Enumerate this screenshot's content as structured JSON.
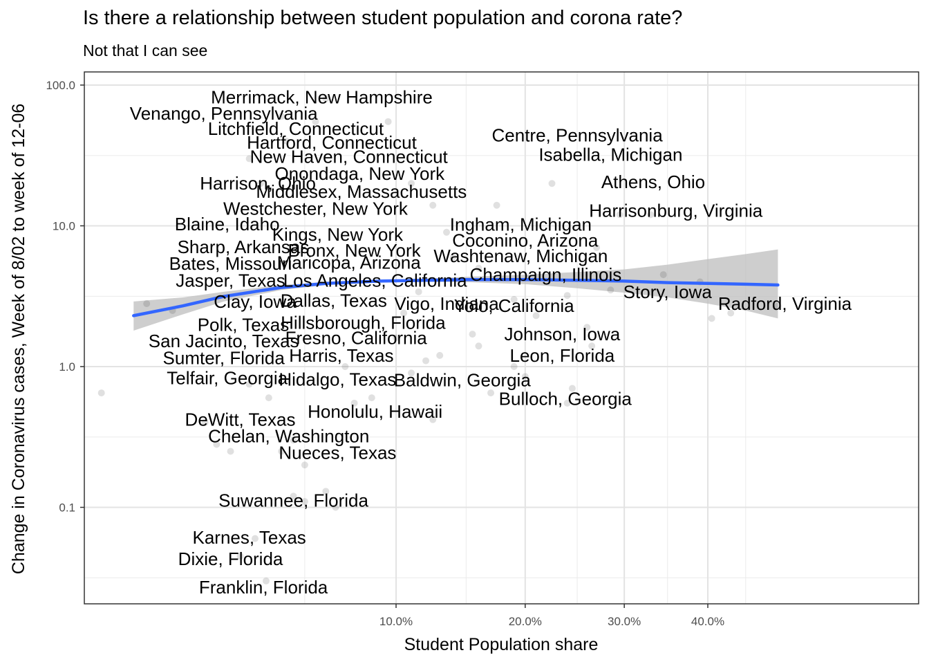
{
  "title": "Is there a relationship between student population and corona rate?",
  "subtitle": "Not that I can see",
  "chart_data": {
    "type": "scatter",
    "title": "Is there a relationship between student population and corona rate?",
    "subtitle": "Not that I can see",
    "xlabel": "Student Population share",
    "ylabel": "Change in Coronavirus cases, Week of 8/02 to week of 12-06",
    "x_scale": "sqrt",
    "y_scale": "log10",
    "xlim": [
      0.0,
      0.5
    ],
    "ylim": [
      0.02,
      150
    ],
    "x_ticks": [
      0.1,
      0.2,
      0.3,
      0.4
    ],
    "x_tick_labels": [
      "10.0%",
      "20.0%",
      "30.0%",
      "40.0%"
    ],
    "y_ticks": [
      0.1,
      1,
      10,
      100
    ],
    "y_tick_labels": [
      "0.1",
      "1.0",
      "10.0",
      "100.0"
    ],
    "grid": true,
    "point_color": "#000000",
    "point_alpha": 0.12,
    "smooth_color": "#3366ff",
    "ribbon_color": "#bdbdbd",
    "smooth": {
      "x": [
        0.0025,
        0.01,
        0.02,
        0.04,
        0.06,
        0.09,
        0.12,
        0.15,
        0.2,
        0.25,
        0.3,
        0.35,
        0.4,
        0.45,
        0.495
      ],
      "y": [
        2.3,
        2.7,
        3.15,
        3.65,
        3.9,
        4.05,
        4.1,
        4.15,
        4.15,
        4.1,
        4.05,
        3.95,
        3.9,
        3.85,
        3.8
      ],
      "lower": [
        1.8,
        2.35,
        2.9,
        3.5,
        3.8,
        3.98,
        4.0,
        3.98,
        3.85,
        3.6,
        3.35,
        3.1,
        2.8,
        2.5,
        2.2
      ],
      "upper": [
        2.9,
        3.1,
        3.4,
        3.8,
        4.0,
        4.12,
        4.2,
        4.35,
        4.5,
        4.7,
        4.9,
        5.3,
        5.8,
        6.3,
        6.8
      ]
    },
    "points": [
      {
        "x": 0.0003,
        "y": 0.65
      },
      {
        "x": 0.004,
        "y": 2.8
      },
      {
        "x": 0.008,
        "y": 2.5
      },
      {
        "x": 0.015,
        "y": 0.4
      },
      {
        "x": 0.018,
        "y": 0.28
      },
      {
        "x": 0.022,
        "y": 0.25
      },
      {
        "x": 0.03,
        "y": 0.06
      },
      {
        "x": 0.034,
        "y": 0.03
      },
      {
        "x": 0.025,
        "y": 0.045
      },
      {
        "x": 0.04,
        "y": 0.25
      },
      {
        "x": 0.045,
        "y": 0.12
      },
      {
        "x": 0.05,
        "y": 0.11
      },
      {
        "x": 0.06,
        "y": 0.13
      },
      {
        "x": 0.065,
        "y": 0.1
      },
      {
        "x": 0.05,
        "y": 0.2
      },
      {
        "x": 0.045,
        "y": 0.3
      },
      {
        "x": 0.035,
        "y": 0.6
      },
      {
        "x": 0.028,
        "y": 0.75
      },
      {
        "x": 0.032,
        "y": 20
      },
      {
        "x": 0.028,
        "y": 30
      },
      {
        "x": 0.042,
        "y": 40
      },
      {
        "x": 0.055,
        "y": 55
      },
      {
        "x": 0.06,
        "y": 80
      },
      {
        "x": 0.04,
        "y": 60
      },
      {
        "x": 0.095,
        "y": 55
      },
      {
        "x": 0.11,
        "y": 20
      },
      {
        "x": 0.125,
        "y": 14
      },
      {
        "x": 0.135,
        "y": 9
      },
      {
        "x": 0.14,
        "y": 6
      },
      {
        "x": 0.16,
        "y": 5
      },
      {
        "x": 0.175,
        "y": 14
      },
      {
        "x": 0.19,
        "y": 3
      },
      {
        "x": 0.21,
        "y": 2.3
      },
      {
        "x": 0.225,
        "y": 20
      },
      {
        "x": 0.24,
        "y": 3.2
      },
      {
        "x": 0.26,
        "y": 1.9
      },
      {
        "x": 0.27,
        "y": 7
      },
      {
        "x": 0.285,
        "y": 3.5
      },
      {
        "x": 0.295,
        "y": 12
      },
      {
        "x": 0.33,
        "y": 12
      },
      {
        "x": 0.345,
        "y": 4.5
      },
      {
        "x": 0.39,
        "y": 4
      },
      {
        "x": 0.405,
        "y": 2.2
      },
      {
        "x": 0.43,
        "y": 2.4
      },
      {
        "x": 0.495,
        "y": 2.7
      },
      {
        "x": 0.155,
        "y": 1.7
      },
      {
        "x": 0.16,
        "y": 1.4
      },
      {
        "x": 0.19,
        "y": 1.0
      },
      {
        "x": 0.2,
        "y": 0.85
      },
      {
        "x": 0.245,
        "y": 0.7
      },
      {
        "x": 0.24,
        "y": 0.55
      },
      {
        "x": 0.265,
        "y": 1.4
      },
      {
        "x": 0.17,
        "y": 0.65
      },
      {
        "x": 0.125,
        "y": 0.42
      },
      {
        "x": 0.11,
        "y": 0.9
      },
      {
        "x": 0.12,
        "y": 1.1
      },
      {
        "x": 0.13,
        "y": 1.2
      },
      {
        "x": 0.1,
        "y": 1.6
      },
      {
        "x": 0.105,
        "y": 2.4
      },
      {
        "x": 0.115,
        "y": 3.4
      },
      {
        "x": 0.085,
        "y": 0.6
      },
      {
        "x": 0.075,
        "y": 0.55
      },
      {
        "x": 0.07,
        "y": 1.0
      }
    ],
    "labels": [
      {
        "text": "Merrimack, New Hampshire",
        "x": 0.058,
        "y": 82
      },
      {
        "text": "Venango, Pennsylvania",
        "x": 0.02,
        "y": 63
      },
      {
        "text": "Litchfield, Connecticut",
        "x": 0.046,
        "y": 49
      },
      {
        "text": "Hartford, Connecticut",
        "x": 0.063,
        "y": 39
      },
      {
        "text": "New Haven, Connecticut",
        "x": 0.072,
        "y": 31
      },
      {
        "text": "Centre, Pennsylvania",
        "x": 0.25,
        "y": 44
      },
      {
        "text": "Isabella, Michigan",
        "x": 0.285,
        "y": 32
      },
      {
        "text": "Onondaga, New York",
        "x": 0.078,
        "y": 23.5
      },
      {
        "text": "Harrison, Ohio",
        "x": 0.031,
        "y": 20
      },
      {
        "text": "Middlesex, Massachusetts",
        "x": 0.079,
        "y": 17.5
      },
      {
        "text": "Athens, Ohio",
        "x": 0.333,
        "y": 20.5
      },
      {
        "text": "Westchester, New York",
        "x": 0.055,
        "y": 13.3
      },
      {
        "text": "Harrisonburg, Virginia",
        "x": 0.36,
        "y": 12.8
      },
      {
        "text": "Blaine, Idaho",
        "x": 0.021,
        "y": 10.3
      },
      {
        "text": "Ingham, Michigan",
        "x": 0.196,
        "y": 10.2
      },
      {
        "text": "Kings, New York",
        "x": 0.066,
        "y": 8.7
      },
      {
        "text": "Coconino, Arizona",
        "x": 0.2,
        "y": 7.9
      },
      {
        "text": "Sharp, Arkansas",
        "x": 0.026,
        "y": 7.1
      },
      {
        "text": "Bronx, New York",
        "x": 0.075,
        "y": 6.7
      },
      {
        "text": "Washtenaw, Michigan",
        "x": 0.196,
        "y": 6.1
      },
      {
        "text": "Bates, Missouri",
        "x": 0.022,
        "y": 5.4
      },
      {
        "text": "Maricopa, Arizona",
        "x": 0.072,
        "y": 5.5
      },
      {
        "text": "Champaign, Illinois",
        "x": 0.219,
        "y": 4.5
      },
      {
        "text": "Jasper, Texas",
        "x": 0.022,
        "y": 4.1
      },
      {
        "text": "Los Angeles, California",
        "x": 0.087,
        "y": 4.1
      },
      {
        "text": "Story, Iowa",
        "x": 0.35,
        "y": 3.4
      },
      {
        "text": "Clay, Iowa",
        "x": 0.03,
        "y": 2.9
      },
      {
        "text": "Dallas, Texas",
        "x": 0.064,
        "y": 2.95
      },
      {
        "text": "Vigo, Indiana",
        "x": 0.135,
        "y": 2.8
      },
      {
        "text": "Yolo, California",
        "x": 0.19,
        "y": 2.7
      },
      {
        "text": "Radford, Virginia",
        "x": 0.505,
        "y": 2.8
      },
      {
        "text": "Hillsborough, Florida",
        "x": 0.08,
        "y": 2.05
      },
      {
        "text": "Polk, Texas",
        "x": 0.026,
        "y": 1.98
      },
      {
        "text": "Johnson, Iowa",
        "x": 0.235,
        "y": 1.7
      },
      {
        "text": "Fresno, California",
        "x": 0.076,
        "y": 1.6
      },
      {
        "text": "San Jacinto, Texas",
        "x": 0.02,
        "y": 1.52
      },
      {
        "text": "Harris, Texas",
        "x": 0.068,
        "y": 1.2
      },
      {
        "text": "Leon, Florida",
        "x": 0.235,
        "y": 1.2
      },
      {
        "text": "Sumter, Florida",
        "x": 0.02,
        "y": 1.15
      },
      {
        "text": "Telfair, Georgia",
        "x": 0.021,
        "y": 0.83
      },
      {
        "text": "Hidalgo, Texas",
        "x": 0.066,
        "y": 0.81
      },
      {
        "text": "Baldwin, Georgia",
        "x": 0.147,
        "y": 0.8
      },
      {
        "text": "Bulloch, Georgia",
        "x": 0.238,
        "y": 0.59
      },
      {
        "text": "Honolulu, Hawaii",
        "x": 0.087,
        "y": 0.48
      },
      {
        "text": "DeWitt, Texas",
        "x": 0.025,
        "y": 0.42
      },
      {
        "text": "Chelan, Washington",
        "x": 0.043,
        "y": 0.32
      },
      {
        "text": "Nueces, Texas",
        "x": 0.066,
        "y": 0.245
      },
      {
        "text": "Suwannee, Florida",
        "x": 0.045,
        "y": 0.112
      },
      {
        "text": "Karnes, Texas",
        "x": 0.028,
        "y": 0.061
      },
      {
        "text": "Dixie, Florida",
        "x": 0.022,
        "y": 0.043
      },
      {
        "text": "Franklin, Florida",
        "x": 0.033,
        "y": 0.027
      }
    ]
  }
}
